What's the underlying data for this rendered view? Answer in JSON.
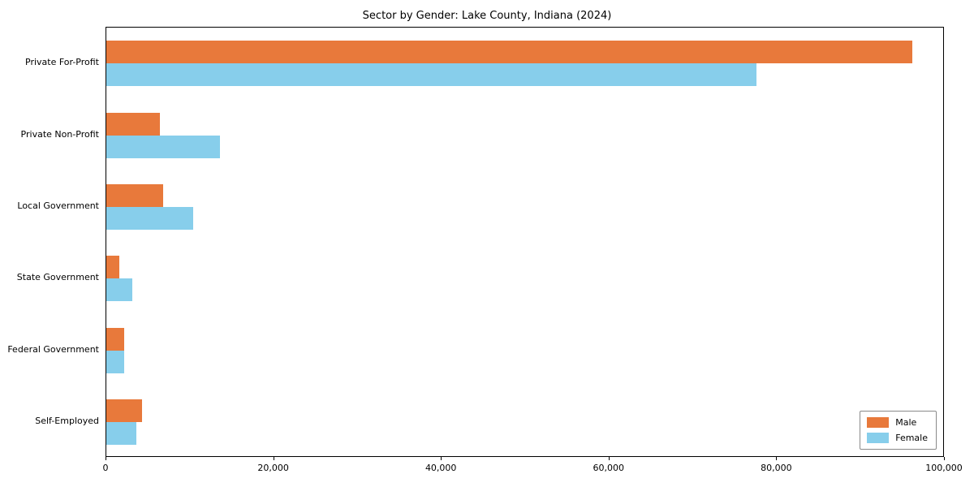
{
  "title": "Sector by Gender: Lake County, Indiana (2024)",
  "chart_data": {
    "type": "bar",
    "orientation": "horizontal",
    "title": "Sector by Gender: Lake County, Indiana (2024)",
    "categories": [
      "Private For-Profit",
      "Private Non-Profit",
      "Local Government",
      "State Government",
      "Federal Government",
      "Self-Employed"
    ],
    "series": [
      {
        "name": "Male",
        "color": "#e8793b",
        "values": [
          96300,
          6400,
          6800,
          1600,
          2100,
          4300
        ]
      },
      {
        "name": "Female",
        "color": "#87ceeb",
        "values": [
          77700,
          13600,
          10400,
          3100,
          2100,
          3600
        ]
      }
    ],
    "xlim": [
      0,
      100000
    ],
    "xticks": [
      0,
      20000,
      40000,
      60000,
      80000,
      100000
    ],
    "xtick_labels": [
      "0",
      "20,000",
      "40,000",
      "60,000",
      "80,000",
      "100,000"
    ],
    "xlabel": "",
    "ylabel": "",
    "grid": false,
    "legend_position": "lower right"
  }
}
